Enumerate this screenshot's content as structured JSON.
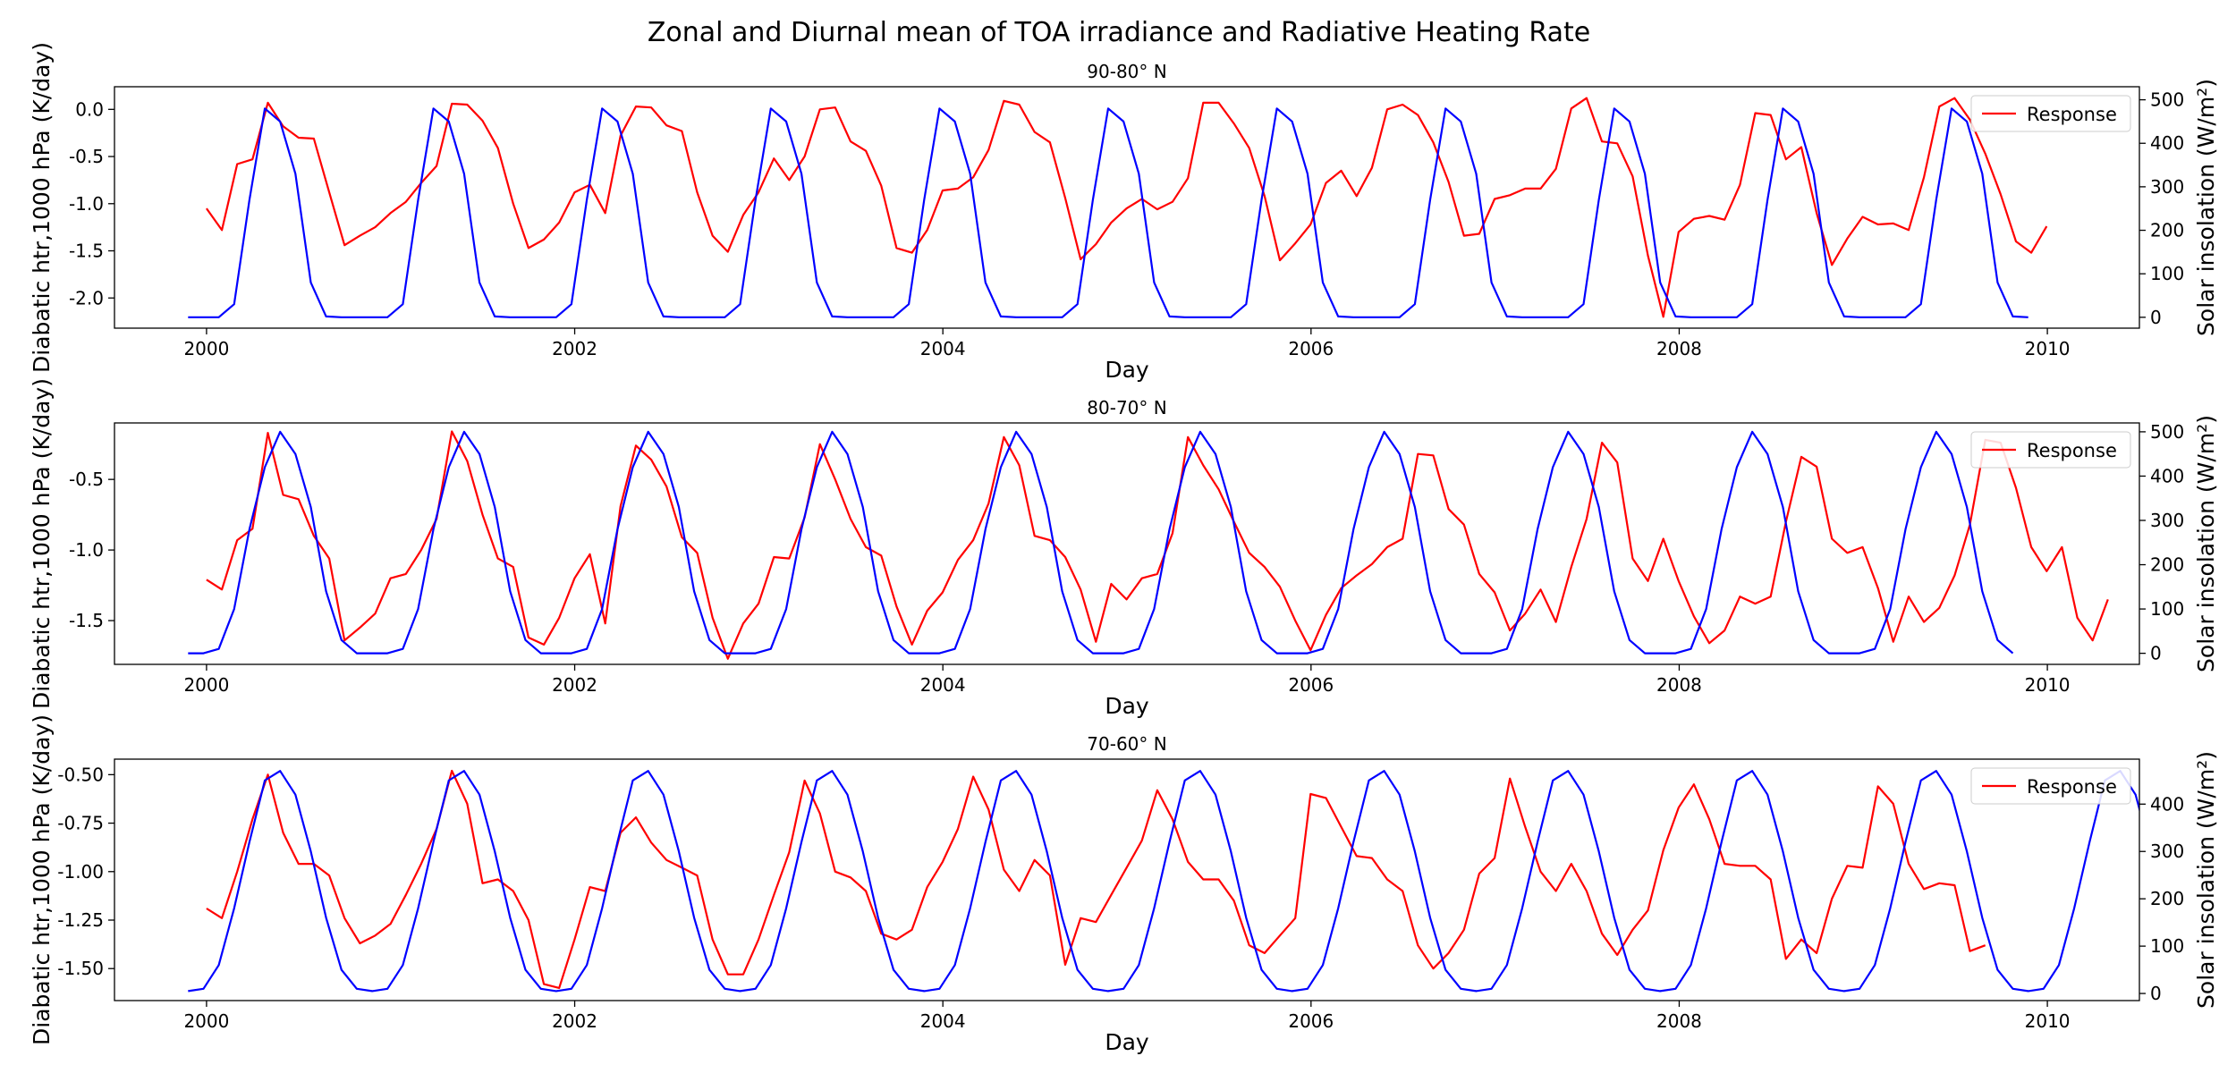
{
  "figure": {
    "suptitle": "Zonal and Diurnal mean of TOA irradiance and Radiative Heating Rate"
  },
  "chart_data": [
    {
      "type": "line",
      "title": "90-80° N",
      "xlabel": "Day",
      "ylabel_left": "Diabatic htr,1000 hPa (K/day)",
      "ylabel_right": "Solar insolation (W/m²)",
      "xlim": [
        1999.5,
        2010.5
      ],
      "ylim_left": [
        -2.32,
        0.24
      ],
      "ylim_right": [
        -25,
        530
      ],
      "xticks": [
        2000,
        2002,
        2004,
        2006,
        2008,
        2010
      ],
      "yticks_left": [
        0.0,
        -0.5,
        -1.0,
        -1.5,
        -2.0
      ],
      "yticks_right": [
        0,
        100,
        200,
        300,
        400,
        500
      ],
      "legend": {
        "placement": "top-right",
        "entries": [
          "Response"
        ]
      },
      "series": [
        {
          "name": "Response",
          "axis": "left",
          "color": "#ff0000",
          "x_start": 2000.0,
          "x_step": 0.0833,
          "values": [
            -1.05,
            -1.28,
            -0.58,
            -0.53,
            0.07,
            -0.18,
            -0.3,
            -0.31,
            -0.88,
            -1.44,
            -1.34,
            -1.25,
            -1.1,
            -0.98,
            -0.78,
            -0.6,
            0.06,
            0.05,
            -0.12,
            -0.41,
            -1.0,
            -1.47,
            -1.38,
            -1.2,
            -0.88,
            -0.8,
            -1.1,
            -0.28,
            0.03,
            0.02,
            -0.17,
            -0.23,
            -0.88,
            -1.34,
            -1.51,
            -1.12,
            -0.88,
            -0.52,
            -0.75,
            -0.5,
            0.0,
            0.02,
            -0.34,
            -0.44,
            -0.81,
            -1.47,
            -1.52,
            -1.28,
            -0.86,
            -0.84,
            -0.72,
            -0.43,
            0.09,
            0.05,
            -0.24,
            -0.35,
            -0.94,
            -1.59,
            -1.43,
            -1.2,
            -1.05,
            -0.95,
            -1.06,
            -0.98,
            -0.73,
            0.07,
            0.07,
            -0.15,
            -0.41,
            -0.92,
            -1.6,
            -1.42,
            -1.22,
            -0.78,
            -0.65,
            -0.92,
            -0.62,
            0.0,
            0.05,
            -0.06,
            -0.35,
            -0.77,
            -1.34,
            -1.32,
            -0.95,
            -0.91,
            -0.84,
            -0.84,
            -0.63,
            0.01,
            0.12,
            -0.34,
            -0.36,
            -0.71,
            -1.55,
            -2.2,
            -1.3,
            -1.16,
            -1.13,
            -1.17,
            -0.8,
            -0.04,
            -0.06,
            -0.53,
            -0.4,
            -1.1,
            -1.65,
            -1.37,
            -1.14,
            -1.22,
            -1.21,
            -1.28,
            -0.72,
            0.03,
            0.12,
            -0.11,
            -0.47,
            -0.9,
            -1.4,
            -1.52,
            -1.24
          ]
        },
        {
          "name": "",
          "axis": "right",
          "color": "#0000ff",
          "x_start": 1999.9,
          "x_step": 0.0833,
          "values": [
            0,
            0,
            0,
            30,
            270,
            480,
            450,
            330,
            80,
            2,
            0,
            0,
            0,
            0,
            30,
            270,
            480,
            450,
            330,
            80,
            2,
            0,
            0,
            0,
            0,
            30,
            270,
            480,
            450,
            330,
            80,
            2,
            0,
            0,
            0,
            0,
            30,
            270,
            480,
            450,
            330,
            80,
            2,
            0,
            0,
            0,
            0,
            30,
            270,
            480,
            450,
            330,
            80,
            2,
            0,
            0,
            0,
            0,
            30,
            270,
            480,
            450,
            330,
            80,
            2,
            0,
            0,
            0,
            0,
            30,
            270,
            480,
            450,
            330,
            80,
            2,
            0,
            0,
            0,
            0,
            30,
            270,
            480,
            450,
            330,
            80,
            2,
            0,
            0,
            0,
            0,
            30,
            270,
            480,
            450,
            330,
            80,
            2,
            0,
            0,
            0,
            0,
            30,
            270,
            480,
            450,
            330,
            80,
            2,
            0,
            0,
            0,
            0,
            30,
            270,
            480,
            450,
            330,
            80,
            2,
            0
          ]
        }
      ]
    },
    {
      "type": "line",
      "title": "80-70° N",
      "xlabel": "Day",
      "ylabel_left": "Diabatic htr,1000 hPa (K/day)",
      "ylabel_right": "Solar insolation (W/m²)",
      "xlim": [
        1999.5,
        2010.5
      ],
      "ylim_left": [
        -1.81,
        -0.1
      ],
      "ylim_right": [
        -25,
        520
      ],
      "xticks": [
        2000,
        2002,
        2004,
        2006,
        2008,
        2010
      ],
      "yticks_left": [
        -0.5,
        -1.0,
        -1.5
      ],
      "yticks_right": [
        0,
        100,
        200,
        300,
        400,
        500
      ],
      "legend": {
        "placement": "top-right",
        "entries": [
          "Response"
        ]
      },
      "series": [
        {
          "name": "Response",
          "axis": "left",
          "color": "#ff0000",
          "x_start": 2000.0,
          "x_step": 0.0833,
          "values": [
            -1.21,
            -1.28,
            -0.93,
            -0.85,
            -0.17,
            -0.61,
            -0.64,
            -0.9,
            -1.06,
            -1.64,
            -1.55,
            -1.45,
            -1.2,
            -1.17,
            -1.0,
            -0.78,
            -0.16,
            -0.37,
            -0.75,
            -1.06,
            -1.12,
            -1.62,
            -1.67,
            -1.48,
            -1.2,
            -1.03,
            -1.52,
            -0.69,
            -0.26,
            -0.36,
            -0.55,
            -0.91,
            -1.02,
            -1.48,
            -1.77,
            -1.52,
            -1.38,
            -1.05,
            -1.06,
            -0.77,
            -0.25,
            -0.5,
            -0.78,
            -0.98,
            -1.04,
            -1.4,
            -1.67,
            -1.43,
            -1.3,
            -1.07,
            -0.93,
            -0.67,
            -0.2,
            -0.4,
            -0.9,
            -0.93,
            -1.05,
            -1.28,
            -1.65,
            -1.24,
            -1.35,
            -1.2,
            -1.17,
            -0.88,
            -0.2,
            -0.4,
            -0.57,
            -0.8,
            -1.02,
            -1.12,
            -1.26,
            -1.5,
            -1.71,
            -1.46,
            -1.27,
            -1.18,
            -1.1,
            -0.98,
            -0.92,
            -0.32,
            -0.33,
            -0.71,
            -0.82,
            -1.17,
            -1.3,
            -1.57,
            -1.45,
            -1.28,
            -1.51,
            -1.12,
            -0.78,
            -0.24,
            -0.38,
            -1.06,
            -1.22,
            -0.92,
            -1.22,
            -1.47,
            -1.66,
            -1.57,
            -1.33,
            -1.38,
            -1.33,
            -0.8,
            -0.34,
            -0.41,
            -0.92,
            -1.02,
            -0.98,
            -1.27,
            -1.65,
            -1.33,
            -1.51,
            -1.41,
            -1.18,
            -0.82,
            -0.22,
            -0.24,
            -0.56,
            -0.98,
            -1.15,
            -0.98,
            -1.48,
            -1.64,
            -1.35
          ]
        },
        {
          "name": "",
          "axis": "right",
          "color": "#0000ff",
          "x_start": 1999.9,
          "x_step": 0.0833,
          "values": [
            0,
            0,
            10,
            100,
            280,
            420,
            500,
            450,
            330,
            140,
            30,
            0,
            0,
            0,
            10,
            100,
            280,
            420,
            500,
            450,
            330,
            140,
            30,
            0,
            0,
            0,
            10,
            100,
            280,
            420,
            500,
            450,
            330,
            140,
            30,
            0,
            0,
            0,
            10,
            100,
            280,
            420,
            500,
            450,
            330,
            140,
            30,
            0,
            0,
            0,
            10,
            100,
            280,
            420,
            500,
            450,
            330,
            140,
            30,
            0,
            0,
            0,
            10,
            100,
            280,
            420,
            500,
            450,
            330,
            140,
            30,
            0,
            0,
            0,
            10,
            100,
            280,
            420,
            500,
            450,
            330,
            140,
            30,
            0,
            0,
            0,
            10,
            100,
            280,
            420,
            500,
            450,
            330,
            140,
            30,
            0,
            0,
            0,
            10,
            100,
            280,
            420,
            500,
            450,
            330,
            140,
            30,
            0,
            0,
            0,
            10,
            100,
            280,
            420,
            500,
            450,
            330,
            140,
            30,
            0
          ]
        }
      ]
    },
    {
      "type": "line",
      "title": "70-60° N",
      "xlabel": "Day",
      "ylabel_left": "Diabatic htr,1000 hPa (K/day)",
      "ylabel_right": "Solar insolation (W/m²)",
      "xlim": [
        1999.5,
        2010.5
      ],
      "ylim_left": [
        -1.665,
        -0.42
      ],
      "ylim_right": [
        -15,
        495
      ],
      "xticks": [
        2000,
        2002,
        2004,
        2006,
        2008,
        2010
      ],
      "yticks_left": [
        -0.5,
        -0.75,
        -1.0,
        -1.25,
        -1.5
      ],
      "yticks_right": [
        0,
        100,
        200,
        300,
        400
      ],
      "legend": {
        "placement": "top-right",
        "entries": [
          "Response"
        ]
      },
      "series": [
        {
          "name": "Response",
          "axis": "left",
          "color": "#ff0000",
          "x_start": 2000.0,
          "x_step": 0.0833,
          "values": [
            -1.19,
            -1.24,
            -1.0,
            -0.73,
            -0.5,
            -0.8,
            -0.96,
            -0.96,
            -1.02,
            -1.24,
            -1.37,
            -1.33,
            -1.27,
            -1.12,
            -0.96,
            -0.78,
            -0.48,
            -0.65,
            -1.06,
            -1.04,
            -1.1,
            -1.25,
            -1.58,
            -1.6,
            -1.35,
            -1.08,
            -1.1,
            -0.8,
            -0.72,
            -0.85,
            -0.94,
            -0.98,
            -1.02,
            -1.35,
            -1.53,
            -1.53,
            -1.35,
            -1.12,
            -0.9,
            -0.53,
            -0.7,
            -1.0,
            -1.03,
            -1.1,
            -1.32,
            -1.35,
            -1.3,
            -1.08,
            -0.95,
            -0.78,
            -0.51,
            -0.68,
            -0.99,
            -1.1,
            -0.94,
            -1.02,
            -1.48,
            -1.24,
            -1.26,
            -1.12,
            -0.98,
            -0.84,
            -0.58,
            -0.73,
            -0.95,
            -1.04,
            -1.04,
            -1.15,
            -1.38,
            -1.42,
            -1.33,
            -1.24,
            -0.6,
            -0.62,
            -0.77,
            -0.92,
            -0.93,
            -1.04,
            -1.1,
            -1.38,
            -1.5,
            -1.42,
            -1.3,
            -1.01,
            -0.93,
            -0.52,
            -0.77,
            -1.0,
            -1.1,
            -0.96,
            -1.1,
            -1.32,
            -1.43,
            -1.3,
            -1.2,
            -0.89,
            -0.67,
            -0.55,
            -0.73,
            -0.96,
            -0.97,
            -0.97,
            -1.04,
            -1.45,
            -1.35,
            -1.42,
            -1.14,
            -0.97,
            -0.98,
            -0.56,
            -0.65,
            -0.96,
            -1.09,
            -1.06,
            -1.07,
            -1.41,
            -1.38
          ]
        },
        {
          "name": "",
          "axis": "right",
          "color": "#0000ff",
          "x_start": 1999.9,
          "x_step": 0.0833,
          "values": [
            5,
            10,
            60,
            180,
            320,
            450,
            470,
            420,
            300,
            160,
            50,
            10,
            5,
            10,
            60,
            180,
            320,
            450,
            470,
            420,
            300,
            160,
            50,
            10,
            5,
            10,
            60,
            180,
            320,
            450,
            470,
            420,
            300,
            160,
            50,
            10,
            5,
            10,
            60,
            180,
            320,
            450,
            470,
            420,
            300,
            160,
            50,
            10,
            5,
            10,
            60,
            180,
            320,
            450,
            470,
            420,
            300,
            160,
            50,
            10,
            5,
            10,
            60,
            180,
            320,
            450,
            470,
            420,
            300,
            160,
            50,
            10,
            5,
            10,
            60,
            180,
            320,
            450,
            470,
            420,
            300,
            160,
            50,
            10,
            5,
            10,
            60,
            180,
            320,
            450,
            470,
            420,
            300,
            160,
            50,
            10,
            5,
            10,
            60,
            180,
            320,
            450,
            470,
            420,
            300,
            160,
            50,
            10,
            5,
            10,
            60,
            180,
            320,
            450,
            470,
            420,
            300,
            160,
            50,
            10,
            5,
            10,
            60,
            180,
            320,
            450,
            470,
            420,
            300,
            160,
            50,
            10,
            5,
            10,
            60,
            180,
            320,
            450,
            470,
            420,
            300,
            160,
            50,
            30
          ]
        }
      ]
    }
  ]
}
